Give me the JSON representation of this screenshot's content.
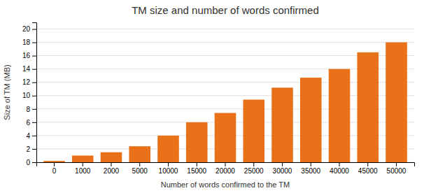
{
  "chart_data": {
    "type": "bar",
    "title": "TM size and number of words confirmed",
    "xlabel": "Number of words confirmed to the TM",
    "ylabel": "Size of TM (MB)",
    "categories": [
      0,
      1000,
      2000,
      5000,
      10000,
      15000,
      20000,
      25000,
      30000,
      35000,
      40000,
      45000,
      50000
    ],
    "values": [
      0.2,
      1.0,
      1.5,
      2.4,
      4.0,
      6.0,
      7.4,
      9.4,
      11.2,
      12.7,
      14.0,
      16.5,
      18.0
    ],
    "color": "#E8711A",
    "ylim": [
      0,
      21
    ],
    "yticks": [
      0,
      2,
      4,
      6,
      8,
      10,
      12,
      14,
      16,
      18,
      20
    ],
    "grid": true
  }
}
